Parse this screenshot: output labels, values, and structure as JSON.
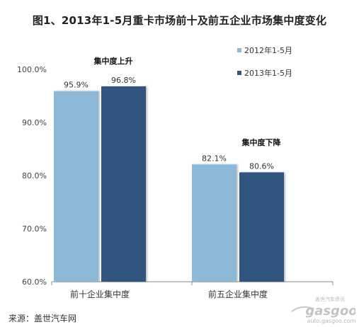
{
  "chart_data": {
    "type": "bar",
    "title": "图1、2013年1-5月重卡市场前十及前五企业市场集中度变化",
    "categories": [
      "前十企业集中度",
      "前五企业集中度"
    ],
    "series": [
      {
        "name": "2012年1-5月",
        "values": [
          95.9,
          82.1
        ],
        "labels": [
          "95.9%",
          "82.1%"
        ],
        "color": "#8db9d9"
      },
      {
        "name": "2013年1-5月",
        "values": [
          96.8,
          80.6
        ],
        "labels": [
          "96.8%",
          "80.6%"
        ],
        "color": "#31557f"
      }
    ],
    "ylim": [
      60,
      100
    ],
    "yticks": [
      60,
      70,
      80,
      90,
      100
    ],
    "ytick_labels": [
      "60.0%",
      "70.0%",
      "80.0%",
      "90.0%",
      "100.0%"
    ],
    "xlabel": "",
    "ylabel": "",
    "legend_position": "top-right",
    "grid": false,
    "annotations": [
      "集中度上升",
      "集中度下降"
    ]
  },
  "source_note": "来源：盖世汽车网",
  "watermark": {
    "top_text": "盖世汽车资讯",
    "logo_text": "gasgoo",
    "url_text": "auto.gasgoo.com"
  }
}
